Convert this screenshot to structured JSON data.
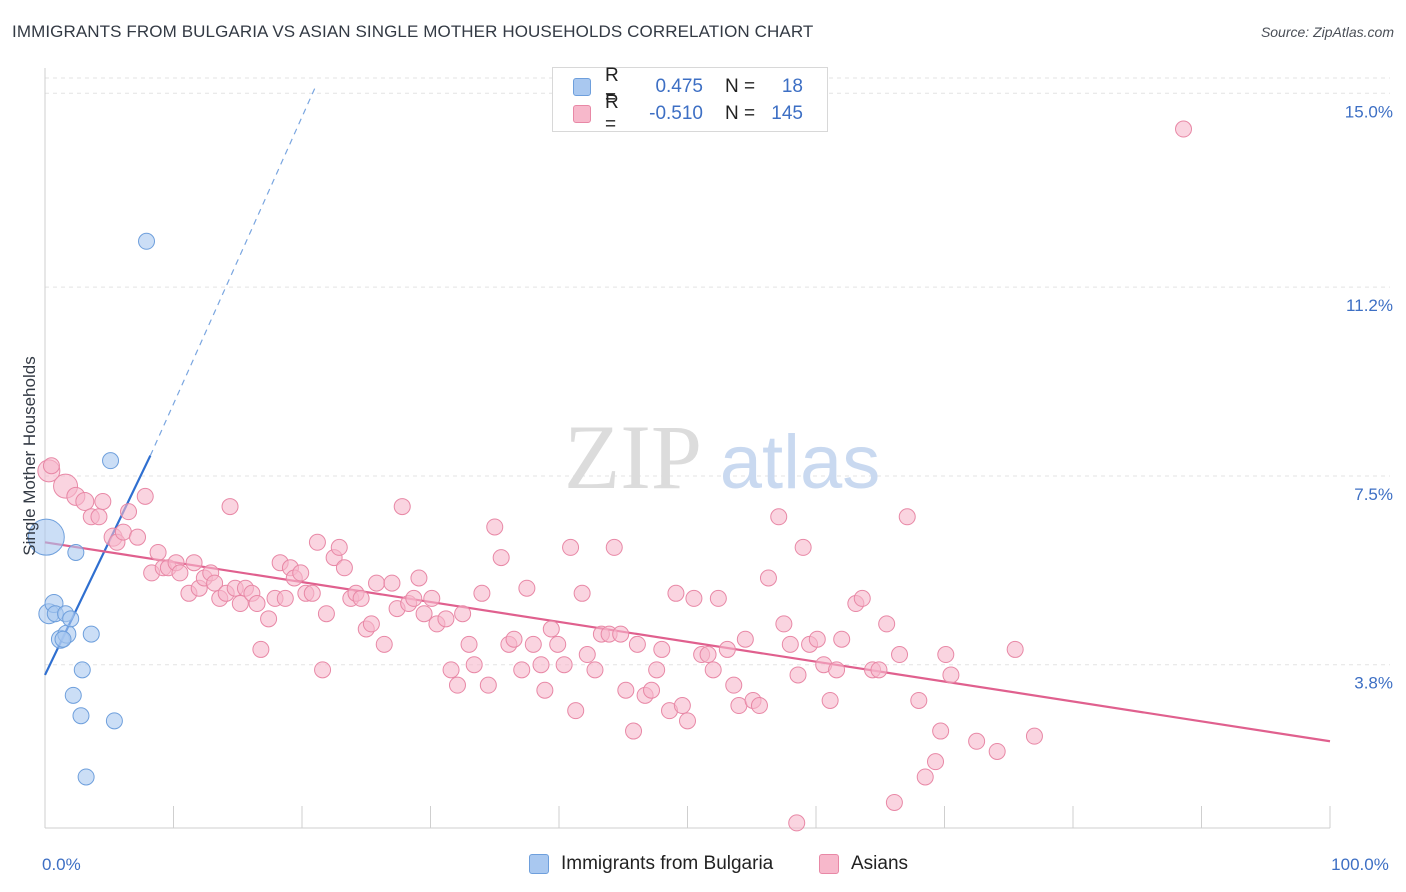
{
  "header": {
    "title": "IMMIGRANTS FROM BULGARIA VS ASIAN SINGLE MOTHER HOUSEHOLDS CORRELATION CHART",
    "source": "Source: ZipAtlas.com"
  },
  "watermark": {
    "zip": "ZIP",
    "atlas": "atlas"
  },
  "legend": {
    "rows": [
      {
        "r_label": "R =",
        "r_value": "0.475",
        "n_label": "N =",
        "n_value": "18",
        "color": "#a9c8f0",
        "border": "#6e9fdc"
      },
      {
        "r_label": "R =",
        "r_value": "-0.510",
        "n_label": "N =",
        "n_value": "145",
        "color": "#f7b8cb",
        "border": "#e888a6"
      }
    ]
  },
  "bottom_legend": {
    "items": [
      {
        "label": "Immigrants from Bulgaria",
        "color": "#a9c8f0",
        "border": "#6e9fdc"
      },
      {
        "label": "Asians",
        "color": "#f7b8cb",
        "border": "#e888a6"
      }
    ]
  },
  "chart_data": {
    "type": "scatter",
    "title": "IMMIGRANTS FROM BULGARIA VS ASIAN SINGLE MOTHER HOUSEHOLDS CORRELATION CHART",
    "xlabel": "",
    "ylabel": "Single Mother Households",
    "xlim": [
      0,
      100
    ],
    "ylim": [
      0.6,
      15.3
    ],
    "x_tick_labels": [
      {
        "value": 0,
        "label": "0.0%"
      },
      {
        "value": 100,
        "label": "100.0%"
      }
    ],
    "y_ticks": [
      {
        "value": 3.8,
        "label": "3.8%"
      },
      {
        "value": 7.5,
        "label": "7.5%"
      },
      {
        "value": 11.2,
        "label": "11.2%"
      },
      {
        "value": 15.0,
        "label": "15.0%"
      }
    ],
    "grid": true,
    "series": [
      {
        "name": "Immigrants from Bulgaria",
        "color": "#a9c8f0",
        "stroke": "#6e9fdc",
        "points": [
          [
            0.1,
            6.3,
            18
          ],
          [
            0.3,
            4.8,
            10
          ],
          [
            0.7,
            5.0,
            9
          ],
          [
            0.8,
            4.8,
            8
          ],
          [
            1.2,
            4.3,
            9
          ],
          [
            1.6,
            4.8,
            8
          ],
          [
            1.7,
            4.4,
            9
          ],
          [
            2.0,
            4.7,
            8
          ],
          [
            2.2,
            3.2,
            8
          ],
          [
            2.4,
            6.0,
            8
          ],
          [
            2.8,
            2.8,
            8
          ],
          [
            2.9,
            3.7,
            8
          ],
          [
            3.2,
            1.6,
            8
          ],
          [
            3.6,
            4.4,
            8
          ],
          [
            5.1,
            7.8,
            8
          ],
          [
            5.4,
            2.7,
            8
          ],
          [
            7.9,
            12.1,
            8
          ],
          [
            1.4,
            4.3,
            8
          ]
        ],
        "trend": {
          "x1": 0,
          "y1": 3.6,
          "x2": 8.2,
          "y2": 7.9,
          "dash_x2": 21.0,
          "dash_y2": 15.1
        }
      },
      {
        "name": "Asians",
        "color": "#f7b8cb",
        "stroke": "#e888a6",
        "points": [
          [
            0.3,
            7.6,
            11
          ],
          [
            0.5,
            7.7,
            8
          ],
          [
            1.6,
            7.3,
            12
          ],
          [
            2.4,
            7.1,
            9
          ],
          [
            3.1,
            7.0,
            9
          ],
          [
            3.6,
            6.7,
            8
          ],
          [
            4.2,
            6.7,
            8
          ],
          [
            4.5,
            7.0,
            8
          ],
          [
            5.3,
            6.3,
            9
          ],
          [
            5.6,
            6.2,
            8
          ],
          [
            6.1,
            6.4,
            8
          ],
          [
            6.5,
            6.8,
            8
          ],
          [
            7.2,
            6.3,
            8
          ],
          [
            7.8,
            7.1,
            8
          ],
          [
            8.3,
            5.6,
            8
          ],
          [
            8.8,
            6.0,
            8
          ],
          [
            9.2,
            5.7,
            8
          ],
          [
            9.6,
            5.7,
            8
          ],
          [
            10.2,
            5.8,
            8
          ],
          [
            10.5,
            5.6,
            8
          ],
          [
            11.2,
            5.2,
            8
          ],
          [
            11.6,
            5.8,
            8
          ],
          [
            12.0,
            5.3,
            8
          ],
          [
            12.4,
            5.5,
            8
          ],
          [
            12.9,
            5.6,
            8
          ],
          [
            13.2,
            5.4,
            8
          ],
          [
            13.6,
            5.1,
            8
          ],
          [
            14.1,
            5.2,
            8
          ],
          [
            14.4,
            6.9,
            8
          ],
          [
            14.8,
            5.3,
            8
          ],
          [
            15.2,
            5.0,
            8
          ],
          [
            15.6,
            5.3,
            8
          ],
          [
            16.1,
            5.2,
            8
          ],
          [
            16.5,
            5.0,
            8
          ],
          [
            16.8,
            4.1,
            8
          ],
          [
            17.4,
            4.7,
            8
          ],
          [
            17.9,
            5.1,
            8
          ],
          [
            18.3,
            5.8,
            8
          ],
          [
            18.7,
            5.1,
            8
          ],
          [
            19.1,
            5.7,
            8
          ],
          [
            19.4,
            5.5,
            8
          ],
          [
            19.9,
            5.6,
            8
          ],
          [
            20.3,
            5.2,
            8
          ],
          [
            20.8,
            5.2,
            8
          ],
          [
            21.2,
            6.2,
            8
          ],
          [
            21.6,
            3.7,
            8
          ],
          [
            21.9,
            4.8,
            8
          ],
          [
            22.5,
            5.9,
            8
          ],
          [
            22.9,
            6.1,
            8
          ],
          [
            23.3,
            5.7,
            8
          ],
          [
            23.8,
            5.1,
            8
          ],
          [
            24.2,
            5.2,
            8
          ],
          [
            24.6,
            5.1,
            8
          ],
          [
            25.0,
            4.5,
            8
          ],
          [
            25.4,
            4.6,
            8
          ],
          [
            25.8,
            5.4,
            8
          ],
          [
            26.4,
            4.2,
            8
          ],
          [
            27.0,
            5.4,
            8
          ],
          [
            27.4,
            4.9,
            8
          ],
          [
            27.8,
            6.9,
            8
          ],
          [
            28.3,
            5.0,
            8
          ],
          [
            28.7,
            5.1,
            8
          ],
          [
            29.1,
            5.5,
            8
          ],
          [
            29.5,
            4.8,
            8
          ],
          [
            30.1,
            5.1,
            8
          ],
          [
            30.5,
            4.6,
            8
          ],
          [
            31.2,
            4.7,
            8
          ],
          [
            31.6,
            3.7,
            8
          ],
          [
            32.1,
            3.4,
            8
          ],
          [
            32.5,
            4.8,
            8
          ],
          [
            33.0,
            4.2,
            8
          ],
          [
            33.4,
            3.8,
            8
          ],
          [
            34.0,
            5.2,
            8
          ],
          [
            34.5,
            3.4,
            8
          ],
          [
            35.0,
            6.5,
            8
          ],
          [
            35.5,
            5.9,
            8
          ],
          [
            36.1,
            4.2,
            8
          ],
          [
            36.5,
            4.3,
            8
          ],
          [
            37.1,
            3.7,
            8
          ],
          [
            37.5,
            5.3,
            8
          ],
          [
            38.0,
            4.2,
            8
          ],
          [
            38.6,
            3.8,
            8
          ],
          [
            38.9,
            3.3,
            8
          ],
          [
            39.4,
            4.5,
            8
          ],
          [
            39.9,
            4.2,
            8
          ],
          [
            40.4,
            3.8,
            8
          ],
          [
            40.9,
            6.1,
            8
          ],
          [
            41.3,
            2.9,
            8
          ],
          [
            41.8,
            5.2,
            8
          ],
          [
            42.2,
            4.0,
            8
          ],
          [
            42.8,
            3.7,
            8
          ],
          [
            43.3,
            4.4,
            8
          ],
          [
            43.9,
            4.4,
            8
          ],
          [
            44.3,
            6.1,
            8
          ],
          [
            44.8,
            4.4,
            8
          ],
          [
            45.2,
            3.3,
            8
          ],
          [
            45.8,
            2.5,
            8
          ],
          [
            46.1,
            4.2,
            8
          ],
          [
            46.7,
            3.2,
            8
          ],
          [
            47.2,
            3.3,
            8
          ],
          [
            47.6,
            3.7,
            8
          ],
          [
            48.0,
            4.1,
            8
          ],
          [
            48.6,
            2.9,
            8
          ],
          [
            49.1,
            5.2,
            8
          ],
          [
            49.6,
            3.0,
            8
          ],
          [
            50.0,
            2.7,
            8
          ],
          [
            50.5,
            5.1,
            8
          ],
          [
            51.1,
            4.0,
            8
          ],
          [
            51.6,
            4.0,
            8
          ],
          [
            52.0,
            3.7,
            8
          ],
          [
            52.4,
            5.1,
            8
          ],
          [
            53.1,
            4.1,
            8
          ],
          [
            53.6,
            3.4,
            8
          ],
          [
            54.0,
            3.0,
            8
          ],
          [
            54.5,
            4.3,
            8
          ],
          [
            55.1,
            3.1,
            8
          ],
          [
            55.6,
            3.0,
            8
          ],
          [
            56.3,
            5.5,
            8
          ],
          [
            57.1,
            6.7,
            8
          ],
          [
            57.5,
            4.6,
            8
          ],
          [
            58.0,
            4.2,
            8
          ],
          [
            58.6,
            3.6,
            8
          ],
          [
            59.0,
            6.1,
            8
          ],
          [
            59.5,
            4.2,
            8
          ],
          [
            60.1,
            4.3,
            8
          ],
          [
            60.6,
            3.8,
            8
          ],
          [
            61.1,
            3.1,
            8
          ],
          [
            61.6,
            3.7,
            8
          ],
          [
            62.0,
            4.3,
            8
          ],
          [
            63.1,
            5.0,
            8
          ],
          [
            63.6,
            5.1,
            8
          ],
          [
            64.4,
            3.7,
            8
          ],
          [
            64.9,
            3.7,
            8
          ],
          [
            65.5,
            4.6,
            8
          ],
          [
            66.1,
            1.1,
            8
          ],
          [
            66.5,
            4.0,
            8
          ],
          [
            67.1,
            6.7,
            8
          ],
          [
            68.0,
            3.1,
            8
          ],
          [
            68.5,
            1.6,
            8
          ],
          [
            69.3,
            1.9,
            8
          ],
          [
            69.7,
            2.5,
            8
          ],
          [
            70.1,
            4.0,
            8
          ],
          [
            70.5,
            3.6,
            8
          ],
          [
            72.5,
            2.3,
            8
          ],
          [
            74.1,
            2.1,
            8
          ],
          [
            75.5,
            4.1,
            8
          ],
          [
            77.0,
            2.4,
            8
          ],
          [
            58.5,
            0.7,
            8
          ],
          [
            88.6,
            14.3,
            8
          ]
        ],
        "trend": {
          "x1": 0,
          "y1": 6.2,
          "x2": 100,
          "y2": 2.3
        }
      }
    ]
  }
}
